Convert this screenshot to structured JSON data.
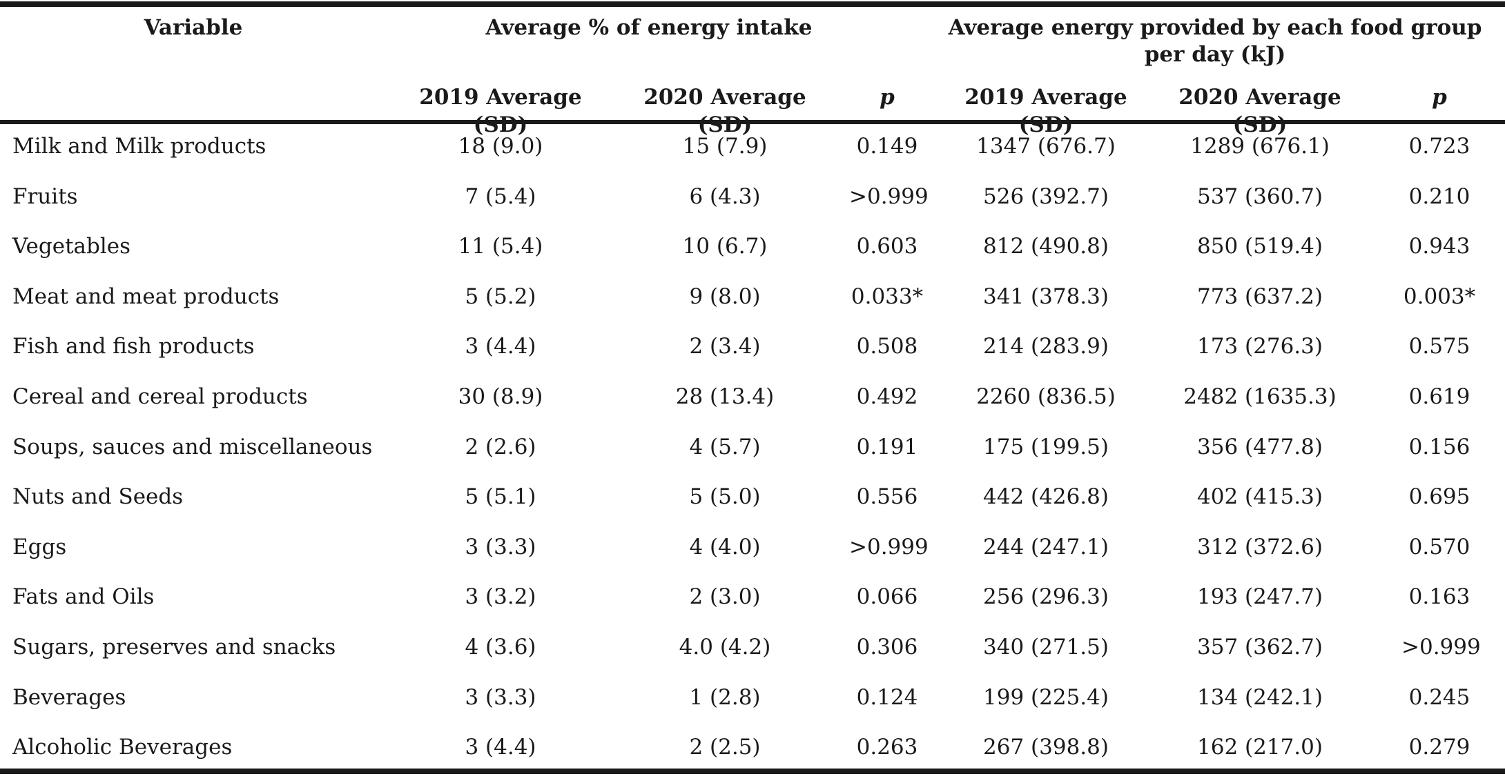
{
  "header": {
    "variable": "Variable",
    "group1": "Average % of energy intake",
    "group2_line1": "Average energy provided by each food group",
    "group2_line2": "per day (kJ)",
    "sub": [
      "2019 Average (SD)",
      "2020 Average (SD)",
      "p",
      "2019 Average (SD)",
      "2020 Average (SD)",
      "p"
    ]
  },
  "rows": [
    {
      "variable": "Milk and Milk products",
      "c1": "18 (9.0)",
      "c2": "15 (7.9)",
      "c3": "0.149",
      "c4": "1347 (676.7)",
      "c5": "1289 (676.1)",
      "c6": "0.723"
    },
    {
      "variable": "Fruits",
      "c1": "7 (5.4)",
      "c2": "6 (4.3)",
      "c3": ">0.999",
      "c4": "526 (392.7)",
      "c5": "537 (360.7)",
      "c6": "0.210"
    },
    {
      "variable": "Vegetables",
      "c1": "11 (5.4)",
      "c2": "10 (6.7)",
      "c3": "0.603",
      "c4": "812 (490.8)",
      "c5": "850 (519.4)",
      "c6": "0.943"
    },
    {
      "variable": "Meat and meat products",
      "c1": "5 (5.2)",
      "c2": "9 (8.0)",
      "c3": "0.033*",
      "c4": "341 (378.3)",
      "c5": "773 (637.2)",
      "c6": "0.003*"
    },
    {
      "variable": "Fish and fish products",
      "c1": "3 (4.4)",
      "c2": "2 (3.4)",
      "c3": "0.508",
      "c4": "214 (283.9)",
      "c5": "173 (276.3)",
      "c6": "0.575"
    },
    {
      "variable": "Cereal and cereal products",
      "c1": "30 (8.9)",
      "c2": "28 (13.4)",
      "c3": "0.492",
      "c4": "2260 (836.5)",
      "c5": "2482 (1635.3)",
      "c6": "0.619"
    },
    {
      "variable": "Soups, sauces and miscellaneous",
      "c1": "2 (2.6)",
      "c2": "4 (5.7)",
      "c3": "0.191",
      "c4": "175 (199.5)",
      "c5": "356 (477.8)",
      "c6": "0.156"
    },
    {
      "variable": "Nuts and Seeds",
      "c1": "5 (5.1)",
      "c2": "5 (5.0)",
      "c3": "0.556",
      "c4": "442 (426.8)",
      "c5": "402 (415.3)",
      "c6": "0.695"
    },
    {
      "variable": "Eggs",
      "c1": "3 (3.3)",
      "c2": "4 (4.0)",
      "c3": ">0.999",
      "c4": "244 (247.1)",
      "c5": "312 (372.6)",
      "c6": "0.570"
    },
    {
      "variable": "Fats and Oils",
      "c1": "3 (3.2)",
      "c2": "2 (3.0)",
      "c3": "0.066",
      "c4": "256 (296.3)",
      "c5": "193 (247.7)",
      "c6": "0.163"
    },
    {
      "variable": "Sugars, preserves and snacks",
      "c1": "4 (3.6)",
      "c2": "4.0 (4.2)",
      "c3": "0.306",
      "c4": "340 (271.5)",
      "c5": "357 (362.7)",
      "c6": ">0.999"
    },
    {
      "variable": "Beverages",
      "c1": "3 (3.3)",
      "c2": "1 (2.8)",
      "c3": "0.124",
      "c4": "199 (225.4)",
      "c5": "134 (242.1)",
      "c6": "0.245"
    },
    {
      "variable": "Alcoholic Beverages",
      "c1": "3 (4.4)",
      "c2": "2 (2.5)",
      "c3": "0.263",
      "c4": "267 (398.8)",
      "c5": "162 (217.0)",
      "c6": "0.279"
    }
  ]
}
